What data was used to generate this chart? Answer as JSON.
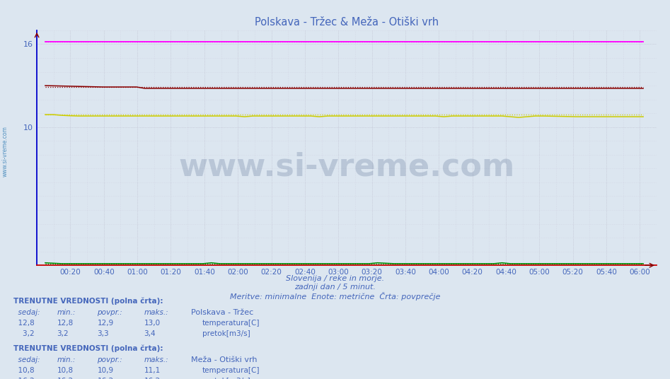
{
  "title": "Polskava - Tržec & Meža - Otiški vrh",
  "title_color": "#4466bb",
  "bg_color": "#dce6f0",
  "plot_bg_color": "#dce6f0",
  "xlabel_texts": [
    "00:20",
    "00:40",
    "01:00",
    "01:20",
    "01:40",
    "02:00",
    "02:20",
    "02:40",
    "03:00",
    "03:20",
    "03:40",
    "04:00",
    "04:20",
    "04:40",
    "05:00",
    "05:20",
    "05:40",
    "06:00"
  ],
  "ylabel_ticks": [
    10,
    16
  ],
  "ylim": [
    0,
    17.0
  ],
  "xlim_minutes": [
    0,
    370
  ],
  "subtitle1": "Slovenija / reke in morje.",
  "subtitle2": "zadnji dan / 5 minut.",
  "subtitle3": "Meritve: minimalne  Enote: metrične  Črta: povprečje",
  "subtitle_color": "#4466bb",
  "watermark": "www.si-vreme.com",
  "watermark_color": "#1a3a6a",
  "watermark_alpha": 0.18,
  "n_points": 73,
  "polskava_temp_color": "#880000",
  "polskava_pretok_color": "#008800",
  "meza_temp_color": "#cccc00",
  "meza_pretok_color": "#ff00ff",
  "left_label_color": "#4488bb",
  "bottom_text_color": "#4466bb",
  "axis_left_color": "#0000cc",
  "axis_bottom_color": "#cc0000",
  "grid_major_color": "#bbbbcc",
  "grid_minor_color": "#ccccdd",
  "tick_color": "#4466bb"
}
